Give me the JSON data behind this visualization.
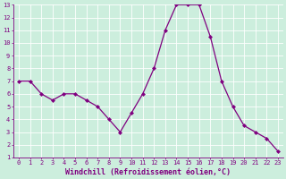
{
  "x": [
    0,
    1,
    2,
    3,
    4,
    5,
    6,
    7,
    8,
    9,
    10,
    11,
    12,
    13,
    14,
    15,
    16,
    17,
    18,
    19,
    20,
    21,
    22,
    23
  ],
  "y": [
    7,
    7,
    6,
    5.5,
    6,
    6,
    5.5,
    5,
    4,
    3,
    4.5,
    6,
    8,
    11,
    13,
    13,
    13,
    10.5,
    7,
    5,
    3.5,
    3,
    2.5,
    1.5
  ],
  "line_color": "#800080",
  "marker": "D",
  "marker_size": 2.0,
  "background_color": "#cceedd",
  "grid_color": "#ffffff",
  "xlabel": "Windchill (Refroidissement éolien,°C)",
  "xlabel_color": "#800080",
  "tick_color": "#800080",
  "xlim_min": -0.5,
  "xlim_max": 23.5,
  "ylim_min": 1,
  "ylim_max": 13,
  "yticks": [
    1,
    2,
    3,
    4,
    5,
    6,
    7,
    8,
    9,
    10,
    11,
    12,
    13
  ],
  "xticks": [
    0,
    1,
    2,
    3,
    4,
    5,
    6,
    7,
    8,
    9,
    10,
    11,
    12,
    13,
    14,
    15,
    16,
    17,
    18,
    19,
    20,
    21,
    22,
    23
  ],
  "tick_fontsize": 5.0,
  "label_fontsize": 6.0,
  "linewidth": 0.9
}
